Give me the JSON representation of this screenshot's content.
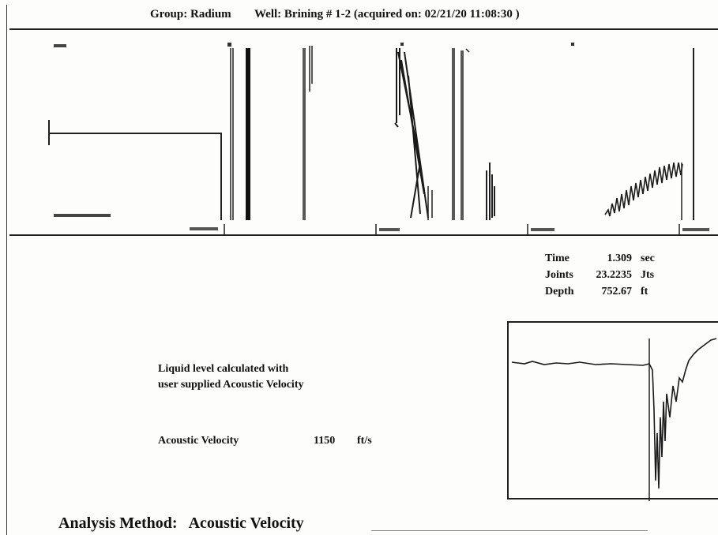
{
  "header": {
    "group": "Group: Radium",
    "well": "Well: Brining # 1-2 (acquired on: 02/21/20 11:08:30 )"
  },
  "readout": {
    "time_label": "Time",
    "time_value": "1.309",
    "time_unit": "sec",
    "joints_label": "Joints",
    "joints_value": "23.2235",
    "joints_unit": "Jts",
    "depth_label": "Depth",
    "depth_value": "752.67",
    "depth_unit": "ft"
  },
  "note": {
    "line1": "Liquid level calculated with",
    "line2": "user supplied Acoustic Velocity"
  },
  "velocity": {
    "label": "Acoustic Velocity",
    "value": "1150",
    "unit": "ft/s"
  },
  "analysis": {
    "label": "Analysis Method:",
    "method": "Acoustic Velocity"
  },
  "colors": {
    "ink": "#1a1a1a",
    "paper": "#fdfdfb"
  }
}
